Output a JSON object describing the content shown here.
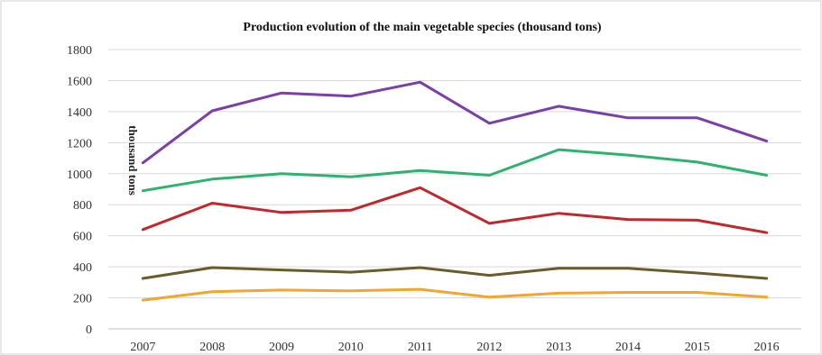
{
  "chart_data": {
    "type": "line",
    "title": "Production evolution of the main vegetable species (thousand tons)",
    "ylabel": "thousand tons",
    "xlabel": "",
    "ylim": [
      0,
      1800
    ],
    "yticks": [
      0,
      200,
      400,
      600,
      800,
      1000,
      1200,
      1400,
      1600,
      1800
    ],
    "categories": [
      "2007",
      "2008",
      "2009",
      "2010",
      "2011",
      "2012",
      "2013",
      "2014",
      "2015",
      "2016"
    ],
    "grid": true,
    "series": [
      {
        "color": "#7b3fa8",
        "values": [
          1070,
          1405,
          1520,
          1500,
          1590,
          1325,
          1435,
          1360,
          1360,
          1210
        ]
      },
      {
        "color": "#2db36e",
        "values": [
          890,
          965,
          1000,
          980,
          1020,
          990,
          1155,
          1120,
          1075,
          990
        ]
      },
      {
        "color": "#c0282c",
        "values": [
          640,
          810,
          750,
          765,
          910,
          680,
          745,
          705,
          700,
          620
        ]
      },
      {
        "color": "#6b5a2a",
        "values": [
          325,
          395,
          380,
          365,
          395,
          345,
          390,
          390,
          360,
          325
        ]
      },
      {
        "color": "#f2a531",
        "values": [
          185,
          240,
          250,
          245,
          255,
          205,
          230,
          235,
          235,
          205
        ]
      }
    ]
  }
}
